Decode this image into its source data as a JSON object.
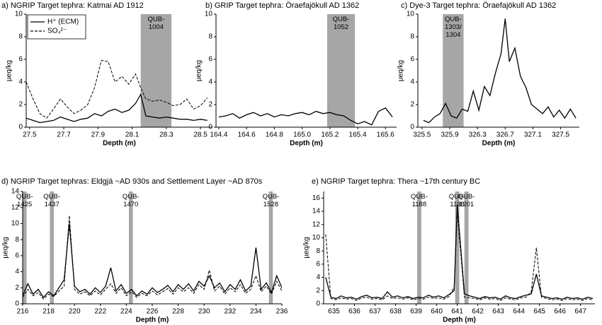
{
  "chart_data": [
    {
      "type": "line",
      "title": "a) NGRIP Target tephra: Katmai AD 1912",
      "xlabel": "Depth (m)",
      "ylabel": "µeq/kg",
      "x": [
        27.48,
        27.52,
        27.56,
        27.6,
        27.64,
        27.68,
        27.72,
        27.76,
        27.8,
        27.84,
        27.88,
        27.92,
        27.96,
        28.0,
        28.04,
        28.08,
        28.12,
        28.15,
        28.18,
        28.22,
        28.26,
        28.3,
        28.34,
        28.38,
        28.42,
        28.46,
        28.5,
        28.54
      ],
      "series": [
        {
          "name": "H⁺ (ECM)",
          "color": "#000000",
          "style": "solid",
          "values": [
            0.8,
            0.6,
            0.4,
            0.5,
            0.6,
            0.9,
            0.7,
            0.5,
            0.7,
            0.8,
            1.2,
            1.0,
            1.4,
            1.6,
            1.3,
            1.5,
            2.1,
            2.9,
            1.0,
            0.9,
            0.8,
            0.9,
            0.8,
            0.7,
            0.7,
            0.6,
            0.7,
            0.6
          ]
        },
        {
          "name": "SO₄²⁻",
          "color": "#000000",
          "style": "dashed",
          "values": [
            4.0,
            2.5,
            1.2,
            0.8,
            1.6,
            2.5,
            1.8,
            1.2,
            1.5,
            2.0,
            3.5,
            5.9,
            5.8,
            4.0,
            4.5,
            3.8,
            4.7,
            3.5,
            2.5,
            2.3,
            2.4,
            2.2,
            1.9,
            2.0,
            2.5,
            1.6,
            1.9,
            2.6
          ]
        }
      ],
      "xlim": [
        27.48,
        28.57
      ],
      "ylim": [
        0,
        10
      ],
      "xticks": [
        27.5,
        27.7,
        27.9,
        28.1,
        28.3,
        28.5
      ],
      "yticks": [
        0,
        2,
        4,
        6,
        8,
        10
      ],
      "shaded_regions": [
        {
          "from": 28.15,
          "to": 28.33,
          "label": [
            "QUB-",
            "1004"
          ]
        }
      ],
      "legend": "upper left"
    },
    {
      "type": "line",
      "title": "b) GRIP Target tephra: Öraefajökull AD 1362",
      "xlabel": "Depth (m)",
      "ylabel": "µeq/kg",
      "x": [
        164.4,
        164.45,
        164.5,
        164.55,
        164.6,
        164.65,
        164.7,
        164.75,
        164.8,
        164.85,
        164.9,
        164.95,
        165.0,
        165.05,
        165.1,
        165.15,
        165.2,
        165.25,
        165.3,
        165.35,
        165.4,
        165.45,
        165.5,
        165.55,
        165.6,
        165.65
      ],
      "series": [
        {
          "color": "#000000",
          "style": "solid",
          "values": [
            0.9,
            1.0,
            1.2,
            0.8,
            1.1,
            1.3,
            1.0,
            1.2,
            0.9,
            1.1,
            1.0,
            1.2,
            1.3,
            1.1,
            1.4,
            1.2,
            1.3,
            1.1,
            1.0,
            0.6,
            0.3,
            0.5,
            0.2,
            1.4,
            1.7,
            0.9
          ]
        }
      ],
      "xlim": [
        164.38,
        165.68
      ],
      "ylim": [
        0,
        10
      ],
      "xticks": [
        164.4,
        164.6,
        164.8,
        {
          "value": 165,
          "label": "165.0"
        },
        165.2,
        165.4,
        165.6
      ],
      "yticks": [
        0,
        2,
        4,
        6,
        8,
        10
      ],
      "shaded_regions": [
        {
          "from": 165.18,
          "to": 165.38,
          "label": [
            "QUB-",
            "1052"
          ]
        }
      ]
    },
    {
      "type": "line",
      "title": "c) Dye-3 Target tephra: Öraefajökull AD 1362",
      "xlabel": "Depth (m)",
      "ylabel": "µeq/kg",
      "x": [
        325.52,
        325.6,
        325.68,
        325.76,
        325.84,
        325.92,
        326.0,
        326.08,
        326.16,
        326.24,
        326.32,
        326.4,
        326.48,
        326.56,
        326.64,
        326.7,
        326.76,
        326.84,
        326.92,
        327.0,
        327.08,
        327.16,
        327.24,
        327.32,
        327.4,
        327.48,
        327.56,
        327.64,
        327.72
      ],
      "series": [
        {
          "color": "#000000",
          "style": "solid",
          "values": [
            0.6,
            0.4,
            0.9,
            1.2,
            2.1,
            1.0,
            0.8,
            1.6,
            1.4,
            3.2,
            1.5,
            3.6,
            2.8,
            4.8,
            6.5,
            9.6,
            5.8,
            7.0,
            4.5,
            3.5,
            2.0,
            1.6,
            1.2,
            1.8,
            0.9,
            1.5,
            0.8,
            1.6,
            0.8
          ]
        }
      ],
      "xlim": [
        325.44,
        327.77
      ],
      "ylim": [
        0,
        10
      ],
      "xticks": [
        325.5,
        325.9,
        326.3,
        326.7,
        327.1,
        327.5
      ],
      "yticks": [
        0,
        2,
        4,
        6,
        8,
        10
      ],
      "shaded_regions": [
        {
          "from": 325.8,
          "to": 326.1,
          "label": [
            "QUB-",
            "1303/",
            "1304"
          ]
        }
      ]
    },
    {
      "type": "line",
      "title": "d) NGRIP Target tephras: Eldgjá ~AD 930s and Settlement Layer ~AD 870s",
      "xlabel": "Depth (m)",
      "ylabel": "µeq/kg",
      "x": [
        216.0,
        216.4,
        216.8,
        217.2,
        217.6,
        218.0,
        218.4,
        218.8,
        219.2,
        219.6,
        220.0,
        220.4,
        220.8,
        221.2,
        221.6,
        222.0,
        222.4,
        222.8,
        223.2,
        223.6,
        224.0,
        224.4,
        224.8,
        225.2,
        225.6,
        226.0,
        226.4,
        226.8,
        227.2,
        227.6,
        228.0,
        228.4,
        228.8,
        229.2,
        229.6,
        230.0,
        230.4,
        230.8,
        231.2,
        231.6,
        232.0,
        232.4,
        232.8,
        233.2,
        233.6,
        234.0,
        234.4,
        234.8,
        235.2,
        235.6,
        236.0
      ],
      "series": [
        {
          "color": "#000000",
          "style": "solid",
          "values": [
            1.0,
            2.5,
            1.2,
            1.8,
            0.8,
            1.5,
            1.0,
            2.0,
            3.0,
            10.0,
            2.2,
            1.5,
            1.8,
            1.2,
            2.0,
            1.4,
            2.2,
            4.5,
            1.6,
            2.4,
            1.3,
            1.8,
            1.0,
            1.6,
            1.2,
            2.0,
            1.4,
            1.8,
            2.3,
            1.5,
            2.4,
            1.8,
            2.5,
            1.6,
            2.8,
            2.2,
            3.5,
            2.0,
            2.6,
            1.5,
            2.4,
            1.8,
            3.0,
            1.6,
            2.2,
            7.0,
            1.8,
            2.6,
            1.4,
            3.5,
            2.0
          ]
        },
        {
          "color": "#000000",
          "style": "dashed",
          "values": [
            0.8,
            1.8,
            1.0,
            1.4,
            0.6,
            1.2,
            0.9,
            1.6,
            2.2,
            11.0,
            1.8,
            1.2,
            1.5,
            1.0,
            1.6,
            1.1,
            1.8,
            2.5,
            1.3,
            2.0,
            1.0,
            1.5,
            0.8,
            1.3,
            1.0,
            1.6,
            1.1,
            1.5,
            1.9,
            1.2,
            2.0,
            1.5,
            2.0,
            1.3,
            2.4,
            1.8,
            4.2,
            1.6,
            2.2,
            1.2,
            2.0,
            1.5,
            2.4,
            1.3,
            1.8,
            3.5,
            1.5,
            2.2,
            1.2,
            2.8,
            1.6
          ]
        }
      ],
      "xlim": [
        216,
        236
      ],
      "ylim": [
        0,
        14
      ],
      "xticks": [
        216,
        218,
        220,
        222,
        224,
        226,
        228,
        230,
        232,
        234,
        236
      ],
      "yticks": [
        0,
        2,
        4,
        6,
        8,
        10,
        12,
        14
      ],
      "shaded_regions": [
        {
          "from": 216.0,
          "to": 216.3,
          "label": [
            "QUB-",
            "1425"
          ]
        },
        {
          "from": 218.1,
          "to": 218.4,
          "label": [
            "QUB-",
            "1437"
          ]
        },
        {
          "from": 224.2,
          "to": 224.5,
          "label": [
            "QUB-",
            "1470"
          ]
        },
        {
          "from": 235.0,
          "to": 235.3,
          "label": [
            "QUB-",
            "1528"
          ]
        }
      ]
    },
    {
      "type": "line",
      "title": "e) NGRIP Target tephra: Thera ~17th century BC",
      "xlabel": "Depth (m)",
      "ylabel": "µeq/kg",
      "x": [
        634.6,
        634.85,
        635.1,
        635.35,
        635.6,
        635.85,
        636.1,
        636.35,
        636.6,
        636.85,
        637.1,
        637.35,
        637.6,
        637.85,
        638.1,
        638.35,
        638.6,
        638.85,
        639.1,
        639.35,
        639.6,
        639.85,
        640.1,
        640.35,
        640.6,
        640.85,
        641.0,
        641.35,
        641.6,
        641.85,
        642.1,
        642.35,
        642.6,
        642.85,
        643.1,
        643.35,
        643.6,
        643.85,
        644.1,
        644.35,
        644.6,
        644.85,
        645.1,
        645.35,
        645.6,
        645.85,
        646.1,
        646.35,
        646.6,
        646.85,
        647.1,
        647.35,
        647.6
      ],
      "series": [
        {
          "color": "#000000",
          "style": "solid",
          "values": [
            4.0,
            1.0,
            0.8,
            1.2,
            0.9,
            1.0,
            0.7,
            1.1,
            1.3,
            0.9,
            1.0,
            0.8,
            1.8,
            1.0,
            1.2,
            0.9,
            1.1,
            0.8,
            1.0,
            0.9,
            1.3,
            1.0,
            1.2,
            0.9,
            1.4,
            2.0,
            15.0,
            1.5,
            1.2,
            1.0,
            0.8,
            1.1,
            0.9,
            1.0,
            0.7,
            1.2,
            0.9,
            0.8,
            1.1,
            1.3,
            1.5,
            4.5,
            1.2,
            1.0,
            0.8,
            0.9,
            0.7,
            1.0,
            0.8,
            0.9,
            0.7,
            1.0,
            0.8
          ]
        },
        {
          "color": "#000000",
          "style": "dashed",
          "values": [
            10.5,
            0.8,
            0.6,
            0.9,
            0.7,
            0.8,
            0.5,
            0.9,
            1.0,
            0.7,
            0.8,
            0.6,
            1.2,
            0.8,
            0.9,
            0.7,
            0.9,
            0.6,
            0.8,
            0.7,
            1.0,
            0.8,
            0.9,
            0.7,
            1.1,
            2.5,
            14.0,
            1.0,
            0.9,
            0.8,
            0.6,
            0.9,
            0.7,
            0.8,
            0.5,
            0.9,
            0.7,
            0.6,
            0.9,
            1.0,
            1.8,
            8.5,
            1.0,
            0.8,
            0.6,
            0.7,
            0.5,
            0.8,
            0.6,
            0.7,
            0.5,
            0.8,
            0.6
          ]
        }
      ],
      "xlim": [
        634.5,
        647.7
      ],
      "ylim": [
        0,
        17
      ],
      "xticks": [
        635,
        636,
        637,
        638,
        639,
        640,
        641,
        642,
        643,
        644,
        645,
        646,
        647
      ],
      "yticks": [
        0,
        2,
        4,
        6,
        8,
        10,
        12,
        14,
        16
      ],
      "shaded_regions": [
        {
          "from": 639.05,
          "to": 639.25,
          "label": [
            "QUB-",
            "1188"
          ]
        },
        {
          "from": 640.9,
          "to": 641.1,
          "label": [
            "QUB-",
            "1198"
          ]
        },
        {
          "from": 641.35,
          "to": 641.55,
          "label": [
            "QUB-",
            "1201"
          ]
        }
      ]
    }
  ]
}
